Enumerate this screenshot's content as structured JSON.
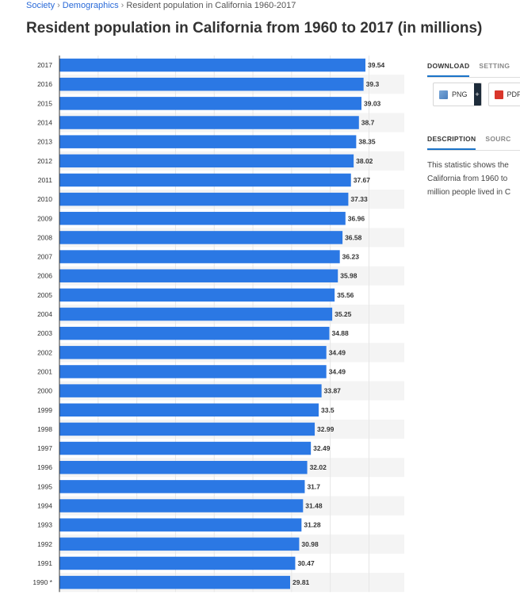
{
  "breadcrumb": {
    "items": [
      "Society",
      "Demographics",
      "Resident population in California 1960-2017"
    ],
    "separator": "›"
  },
  "page_title": "Resident population in California from 1960 to 2017 (in millions)",
  "colors": {
    "bar": "#2b78e4",
    "stripe": "#f4f4f4",
    "grid": "#e6e6e6",
    "axis": "#333333"
  },
  "panel": {
    "download_tabs": [
      "DOWNLOAD",
      "SETTING"
    ],
    "buttons": [
      {
        "label": "PNG",
        "icon": "png-file-icon"
      },
      {
        "label": "PDF",
        "icon": "pdf-file-icon"
      }
    ],
    "plus_label": "+",
    "info_tabs": [
      "DESCRIPTION",
      "SOURC"
    ],
    "description_lines": [
      "This statistic shows the",
      "California from 1960 to",
      "million people lived in C"
    ]
  },
  "chart_data": {
    "type": "bar",
    "orientation": "horizontal",
    "title": "Resident population in California from 1960 to 2017 (in millions)",
    "xlim": [
      0,
      42
    ],
    "grid": true,
    "categories": [
      "2017",
      "2016",
      "2015",
      "2014",
      "2013",
      "2012",
      "2011",
      "2010",
      "2009",
      "2008",
      "2007",
      "2006",
      "2005",
      "2004",
      "2003",
      "2002",
      "2001",
      "2000",
      "1999",
      "1998",
      "1997",
      "1996",
      "1995",
      "1994",
      "1993",
      "1992",
      "1991",
      "1990 *"
    ],
    "values": [
      39.54,
      39.3,
      39.03,
      38.7,
      38.35,
      38.02,
      37.67,
      37.33,
      36.96,
      36.58,
      36.23,
      35.98,
      35.56,
      35.25,
      34.88,
      34.49,
      34.49,
      33.87,
      33.5,
      32.99,
      32.49,
      32.02,
      31.7,
      31.48,
      31.28,
      30.98,
      30.47,
      29.81
    ]
  }
}
